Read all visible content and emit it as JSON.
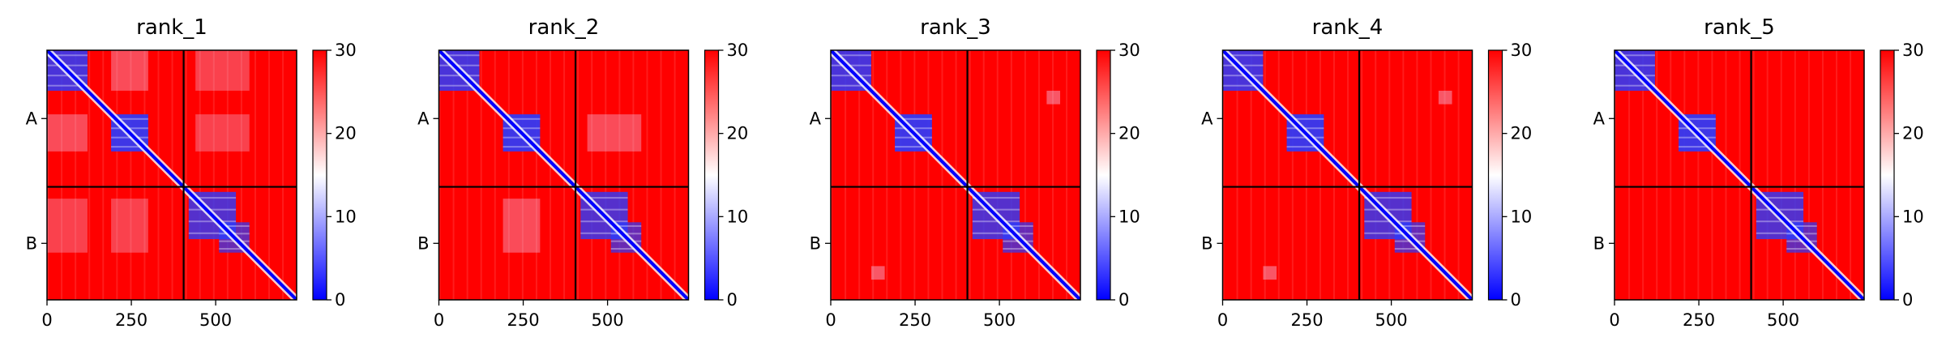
{
  "chart_data": [
    {
      "type": "heatmap",
      "title": "rank_1",
      "x_ticks": [
        "0",
        "250",
        "500"
      ],
      "y_ticks": [
        "A",
        "B"
      ],
      "x_range": [
        0,
        740
      ],
      "chain_boundary": 405,
      "colorbar": {
        "min": 0,
        "max": 30,
        "ticks": [
          "0",
          "10",
          "20",
          "30"
        ],
        "colors": [
          "#0000ff",
          "#ffffff",
          "#ff0000"
        ]
      },
      "blue_blocks": [
        [
          0,
          120,
          0,
          120,
          0.85
        ],
        [
          190,
          300,
          190,
          300,
          0.9
        ],
        [
          0,
          120,
          190,
          300,
          0.35
        ],
        [
          190,
          300,
          0,
          120,
          0.35
        ],
        [
          420,
          560,
          420,
          560,
          0.8
        ],
        [
          510,
          600,
          510,
          600,
          0.7
        ],
        [
          440,
          600,
          0,
          120,
          0.3
        ],
        [
          440,
          600,
          190,
          300,
          0.3
        ],
        [
          0,
          120,
          440,
          600,
          0.3
        ],
        [
          190,
          300,
          440,
          600,
          0.3
        ]
      ]
    },
    {
      "type": "heatmap",
      "title": "rank_2",
      "x_ticks": [
        "0",
        "250",
        "500"
      ],
      "y_ticks": [
        "A",
        "B"
      ],
      "x_range": [
        0,
        740
      ],
      "chain_boundary": 405,
      "colorbar": {
        "min": 0,
        "max": 30,
        "ticks": [
          "0",
          "10",
          "20",
          "30"
        ],
        "colors": [
          "#0000ff",
          "#ffffff",
          "#ff0000"
        ]
      },
      "blue_blocks": [
        [
          0,
          120,
          0,
          120,
          0.85
        ],
        [
          190,
          300,
          190,
          300,
          0.9
        ],
        [
          420,
          560,
          420,
          560,
          0.8
        ],
        [
          510,
          600,
          510,
          600,
          0.7
        ],
        [
          190,
          300,
          440,
          600,
          0.35
        ],
        [
          440,
          600,
          190,
          300,
          0.35
        ]
      ]
    },
    {
      "type": "heatmap",
      "title": "rank_3",
      "x_ticks": [
        "0",
        "250",
        "500"
      ],
      "y_ticks": [
        "A",
        "B"
      ],
      "x_range": [
        0,
        740
      ],
      "chain_boundary": 405,
      "colorbar": {
        "min": 0,
        "max": 30,
        "ticks": [
          "0",
          "10",
          "20",
          "30"
        ],
        "colors": [
          "#0000ff",
          "#ffffff",
          "#ff0000"
        ]
      },
      "blue_blocks": [
        [
          0,
          120,
          0,
          120,
          0.85
        ],
        [
          190,
          300,
          190,
          300,
          0.9
        ],
        [
          420,
          560,
          420,
          560,
          0.8
        ],
        [
          510,
          600,
          510,
          600,
          0.7
        ],
        [
          640,
          680,
          120,
          160,
          0.4
        ],
        [
          120,
          160,
          640,
          680,
          0.4
        ]
      ]
    },
    {
      "type": "heatmap",
      "title": "rank_4",
      "x_ticks": [
        "0",
        "250",
        "500"
      ],
      "y_ticks": [
        "A",
        "B"
      ],
      "x_range": [
        0,
        740
      ],
      "chain_boundary": 405,
      "colorbar": {
        "min": 0,
        "max": 30,
        "ticks": [
          "0",
          "10",
          "20",
          "30"
        ],
        "colors": [
          "#0000ff",
          "#ffffff",
          "#ff0000"
        ]
      },
      "blue_blocks": [
        [
          0,
          120,
          0,
          120,
          0.85
        ],
        [
          190,
          300,
          190,
          300,
          0.9
        ],
        [
          420,
          560,
          420,
          560,
          0.8
        ],
        [
          510,
          600,
          510,
          600,
          0.7
        ],
        [
          640,
          680,
          120,
          160,
          0.4
        ],
        [
          120,
          160,
          640,
          680,
          0.4
        ]
      ]
    },
    {
      "type": "heatmap",
      "title": "rank_5",
      "x_ticks": [
        "0",
        "250",
        "500"
      ],
      "y_ticks": [
        "A",
        "B"
      ],
      "x_range": [
        0,
        740
      ],
      "chain_boundary": 405,
      "colorbar": {
        "min": 0,
        "max": 30,
        "ticks": [
          "0",
          "10",
          "20",
          "30"
        ],
        "colors": [
          "#0000ff",
          "#ffffff",
          "#ff0000"
        ]
      },
      "blue_blocks": [
        [
          0,
          120,
          0,
          120,
          0.85
        ],
        [
          190,
          300,
          190,
          300,
          0.9
        ],
        [
          420,
          560,
          420,
          560,
          0.8
        ],
        [
          510,
          600,
          510,
          600,
          0.7
        ]
      ]
    }
  ]
}
